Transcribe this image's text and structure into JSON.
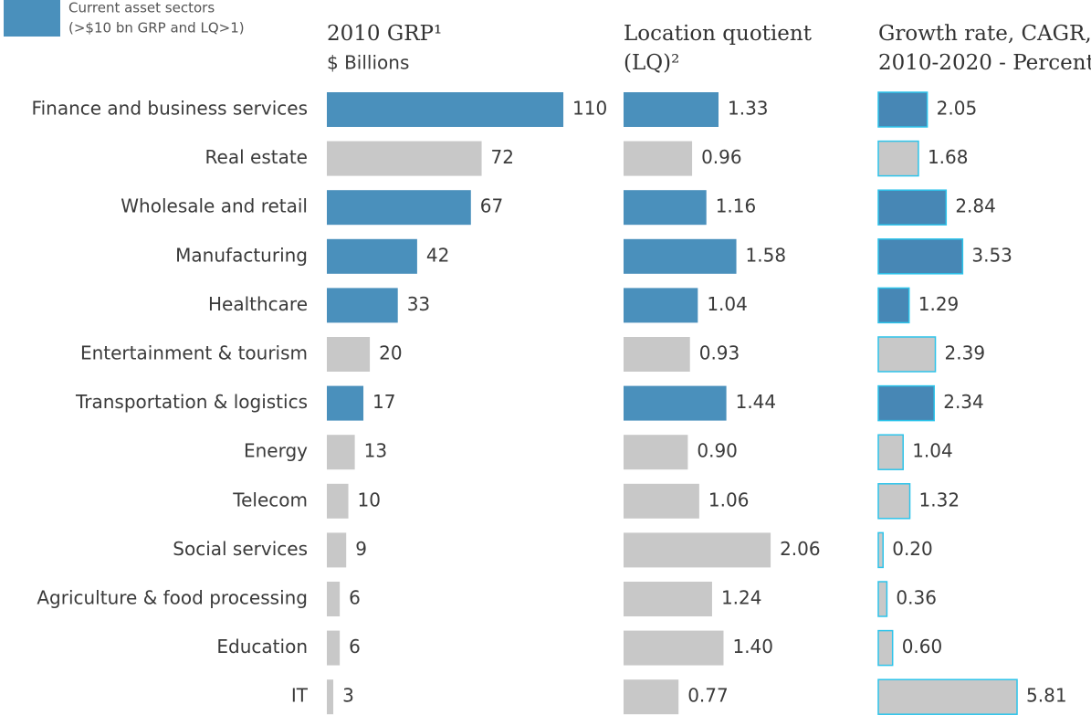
{
  "legend": {
    "color": "#4a90bc",
    "lines": [
      "Current asset sectors",
      "(>$10 bn GRP and LQ>1)"
    ]
  },
  "chart_data": [
    {
      "type": "bar",
      "orientation": "horizontal",
      "title": "2010 GRP¹",
      "subtitle": "$ Billions",
      "categories": [
        "Finance and business services",
        "Real estate",
        "Wholesale and retail",
        "Manufacturing",
        "Healthcare",
        "Entertainment & tourism",
        "Transportation & logistics",
        "Energy",
        "Telecom",
        "Social services",
        "Agriculture & food processing",
        "Education",
        "IT"
      ],
      "values": [
        110,
        72,
        67,
        42,
        33,
        20,
        17,
        13,
        10,
        9,
        6,
        6,
        3
      ],
      "colors": [
        "#4a90bc",
        "#c8c8c8",
        "#4a90bc",
        "#4a90bc",
        "#4a90bc",
        "#c8c8c8",
        "#4a90bc",
        "#c8c8c8",
        "#c8c8c8",
        "#c8c8c8",
        "#c8c8c8",
        "#c8c8c8",
        "#c8c8c8"
      ],
      "xlim": [
        0,
        120
      ]
    },
    {
      "type": "bar",
      "orientation": "horizontal",
      "title": "Location quotient",
      "subtitle": "(LQ)²",
      "values": [
        1.33,
        0.96,
        1.16,
        1.58,
        1.04,
        0.93,
        1.44,
        0.9,
        1.06,
        2.06,
        1.24,
        1.4,
        0.77
      ],
      "value_labels": [
        "1.33",
        "0.96",
        "1.16",
        "1.58",
        "1.04",
        "0.93",
        "1.44",
        "0.90",
        "1.06",
        "2.06",
        "1.24",
        "1.40",
        "0.77"
      ],
      "colors": [
        "#4a90bc",
        "#c8c8c8",
        "#4a90bc",
        "#4a90bc",
        "#4a90bc",
        "#c8c8c8",
        "#4a90bc",
        "#c8c8c8",
        "#c8c8c8",
        "#c8c8c8",
        "#c8c8c8",
        "#c8c8c8",
        "#c8c8c8"
      ],
      "xlim": [
        0,
        2
      ]
    },
    {
      "type": "bar",
      "orientation": "horizontal",
      "title": "Growth rate, CAGR,",
      "subtitle": "2010-2020 - Percent",
      "values": [
        2.05,
        1.68,
        2.84,
        3.53,
        1.29,
        2.39,
        2.34,
        1.04,
        1.32,
        0.2,
        0.36,
        0.6,
        5.81
      ],
      "value_labels": [
        "2.05",
        "1.68",
        "2.84",
        "3.53",
        "1.29",
        "2.39",
        "2.34",
        "1.04",
        "1.32",
        "0.20",
        "0.36",
        "0.60",
        "5.81"
      ],
      "colors": [
        "#4787b5",
        "#c8c8c8",
        "#4787b5",
        "#4787b5",
        "#4787b5",
        "#c8c8c8",
        "#4787b5",
        "#c8c8c8",
        "#c8c8c8",
        "#c8c8c8",
        "#c8c8c8",
        "#c8c8c8",
        "#c8c8c8"
      ],
      "edge_color": "#2ec4ea",
      "xlim": [
        0,
        6
      ]
    }
  ]
}
